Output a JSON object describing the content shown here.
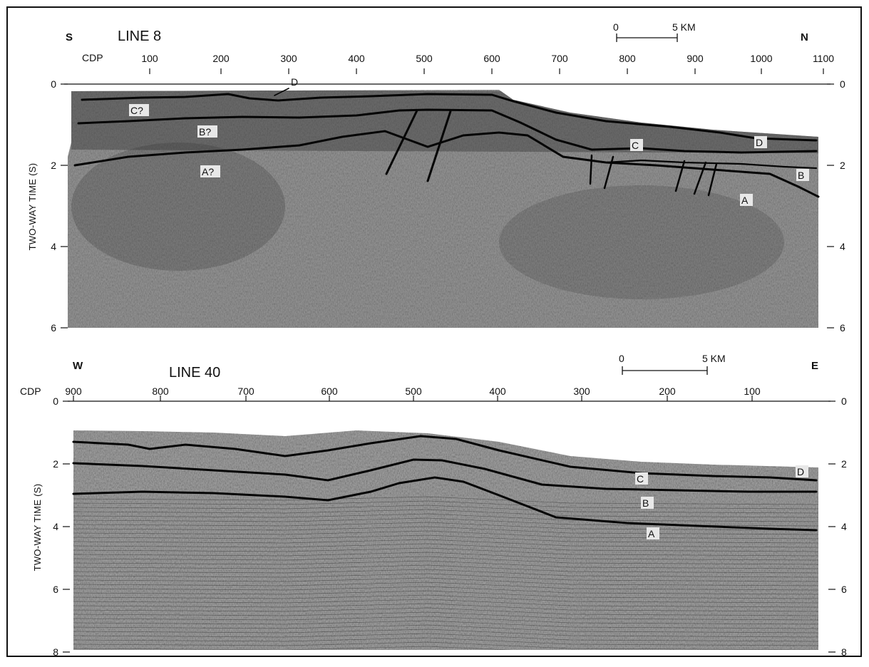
{
  "panels": [
    {
      "title": "LINE 8",
      "left_direction": "S",
      "right_direction": "N",
      "cdp_label": "CDP",
      "cdp_ticks": [
        "100",
        "200",
        "300",
        "400",
        "500",
        "600",
        "700",
        "800",
        "900",
        "1000",
        "1100"
      ],
      "time_ticks_left": [
        "0",
        "2",
        "4",
        "6"
      ],
      "time_ticks_right": [
        "0",
        "2",
        "4",
        "6"
      ],
      "axis_title": "TWO-WAY TIME (S)",
      "scale_zero": "0",
      "scale_label": "5 KM",
      "horizons": [
        "D",
        "C?",
        "B?",
        "A?",
        "C",
        "D",
        "B",
        "A"
      ]
    },
    {
      "title": "LINE 40",
      "left_direction": "W",
      "right_direction": "E",
      "cdp_label": "CDP",
      "cdp_ticks": [
        "900",
        "800",
        "700",
        "600",
        "500",
        "400",
        "300",
        "200",
        "100"
      ],
      "time_ticks_left": [
        "0",
        "2",
        "4",
        "6",
        "8"
      ],
      "time_ticks_right": [
        "0",
        "2",
        "4",
        "6",
        "8"
      ],
      "axis_title": "TWO-WAY TIME (S)",
      "scale_zero": "0",
      "scale_label": "5 KM",
      "horizons": [
        "C",
        "D",
        "B",
        "A"
      ]
    }
  ],
  "colors": {
    "background": "#ffffff",
    "ink": "#111111",
    "seismic": "#8a8a8a"
  }
}
